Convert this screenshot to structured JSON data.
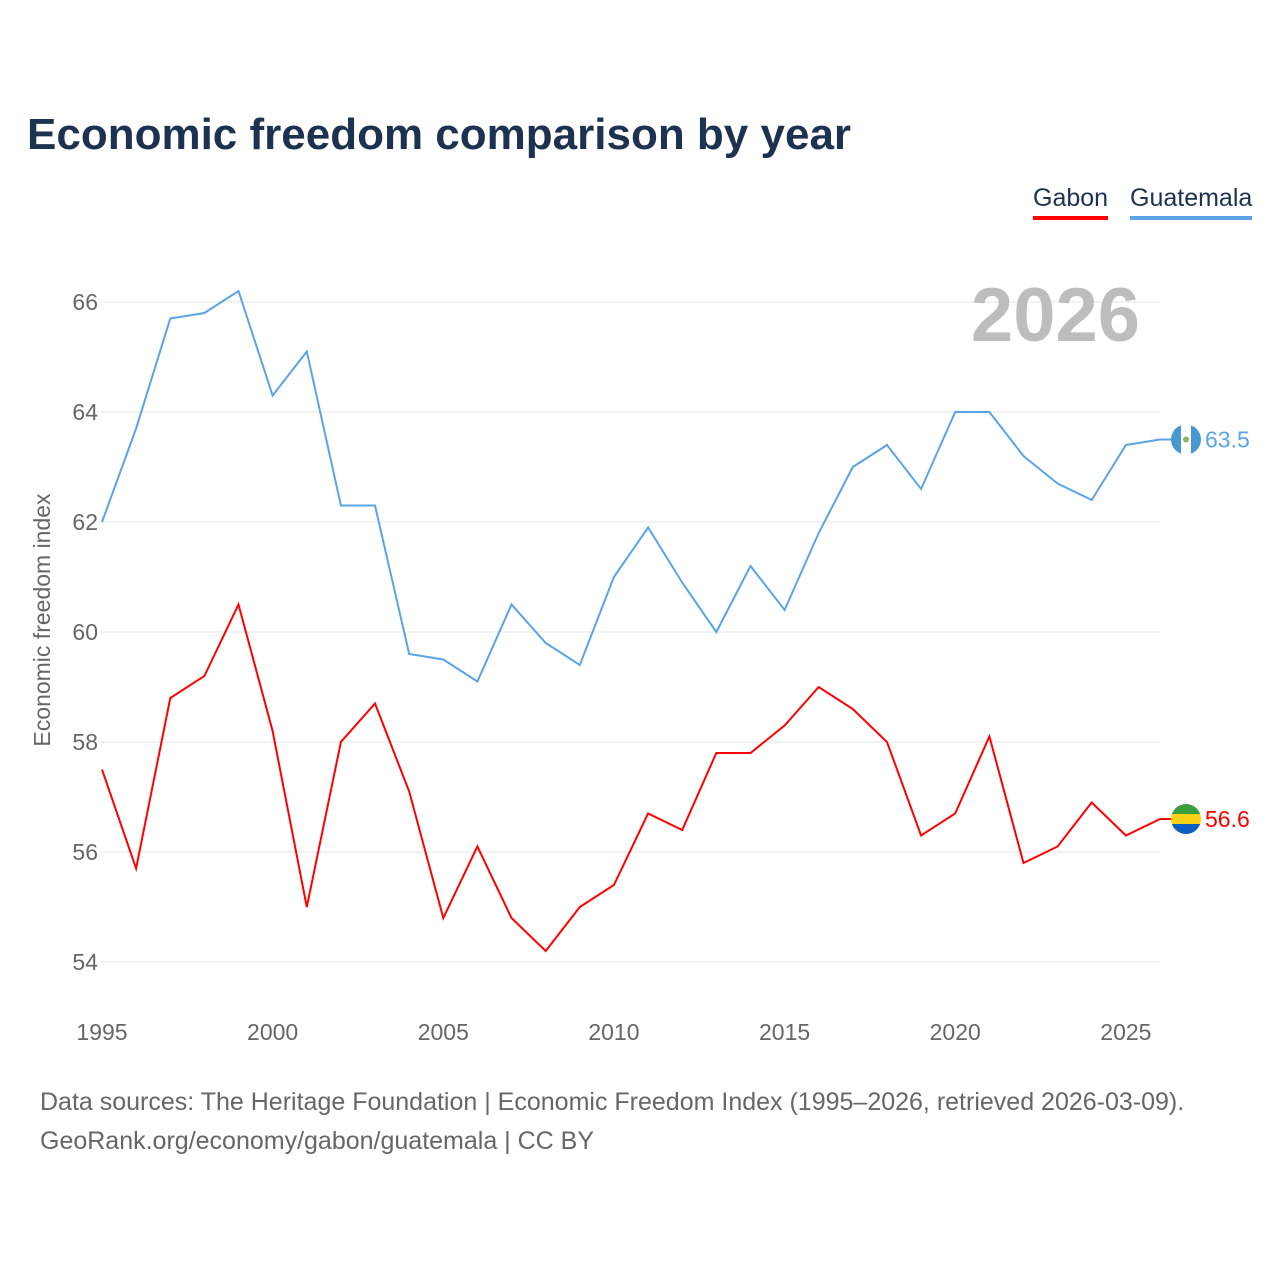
{
  "title": "Economic freedom comparison by year",
  "legend": [
    {
      "name": "Gabon",
      "color": "#ff0000"
    },
    {
      "name": "Guatemala",
      "color": "#5ba3e8"
    }
  ],
  "year_watermark": "2026",
  "footer": {
    "line1": "Data sources: The Heritage Foundation | Economic Freedom Index (1995–2026, retrieved 2026-03-09).",
    "line2": "GeoRank.org/economy/gabon/guatemala | CC BY"
  },
  "chart_data": {
    "type": "line",
    "title": "Economic freedom comparison by year",
    "xlabel": "",
    "ylabel": "Economic freedom index",
    "xlim": [
      1995,
      2026
    ],
    "ylim": [
      53,
      67
    ],
    "yticks": [
      54,
      56,
      58,
      60,
      62,
      64,
      66
    ],
    "xticks": [
      1995,
      2000,
      2005,
      2010,
      2015,
      2020,
      2025
    ],
    "grid": true,
    "legend_position": "top-right",
    "x": [
      1995,
      1996,
      1997,
      1998,
      1999,
      2000,
      2001,
      2002,
      2003,
      2004,
      2005,
      2006,
      2007,
      2008,
      2009,
      2010,
      2011,
      2012,
      2013,
      2014,
      2015,
      2016,
      2017,
      2018,
      2019,
      2020,
      2021,
      2022,
      2023,
      2024,
      2025,
      2026
    ],
    "series": [
      {
        "name": "Gabon",
        "color": "#ff0000",
        "end_label": "56.6",
        "flag": "gabon-flag",
        "values": [
          57.5,
          55.7,
          58.8,
          59.2,
          60.5,
          58.2,
          55.0,
          58.0,
          58.7,
          57.1,
          54.8,
          56.1,
          54.8,
          54.2,
          55.0,
          55.4,
          56.7,
          56.4,
          57.8,
          57.8,
          58.3,
          59.0,
          58.6,
          58.0,
          56.3,
          56.7,
          58.1,
          55.8,
          56.1,
          56.9,
          56.3,
          56.6
        ]
      },
      {
        "name": "Guatemala",
        "color": "#5ba3e8",
        "end_label": "63.5",
        "flag": "guatemala-flag",
        "values": [
          62.0,
          63.7,
          65.7,
          65.8,
          66.2,
          64.3,
          65.1,
          62.3,
          62.3,
          59.6,
          59.5,
          59.1,
          60.5,
          59.8,
          59.4,
          61.0,
          61.9,
          60.9,
          60.0,
          61.2,
          60.4,
          61.8,
          63.0,
          63.4,
          62.6,
          64.0,
          64.0,
          63.2,
          62.7,
          62.4,
          63.4,
          63.5
        ]
      }
    ]
  }
}
